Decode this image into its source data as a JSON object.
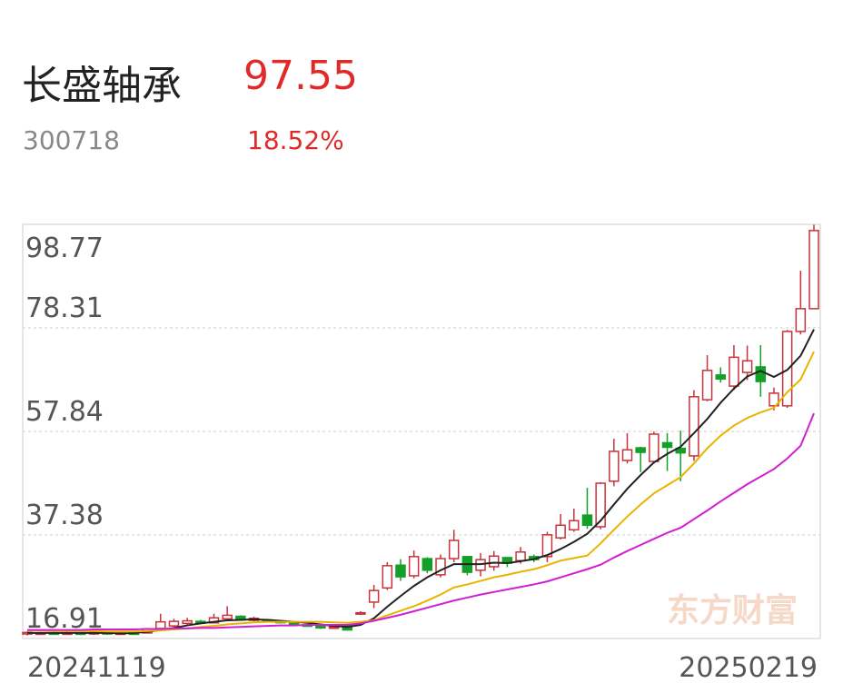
{
  "header": {
    "title": "长盛轴承",
    "price": "97.55",
    "code": "300718",
    "change": "18.52%"
  },
  "chart_data": {
    "type": "candlestick",
    "watermark": "东方财富",
    "categories": [
      "20241119",
      null,
      null,
      null,
      null,
      null,
      null,
      null,
      null,
      null,
      null,
      null,
      null,
      null,
      null,
      null,
      null,
      null,
      null,
      null,
      null,
      null,
      null,
      null,
      null,
      null,
      null,
      null,
      null,
      null,
      null,
      null,
      null,
      null,
      null,
      null,
      null,
      null,
      null,
      null,
      null,
      null,
      null,
      null,
      null,
      null,
      null,
      null,
      null,
      null,
      null,
      null,
      null,
      null,
      null,
      null,
      null,
      null,
      null,
      "20250219"
    ],
    "open": [
      17.8,
      17.9,
      18.0,
      17.9,
      18.0,
      17.8,
      18.1,
      17.8,
      18.0,
      18.0,
      18.9,
      19.4,
      19.9,
      20.3,
      20.0,
      20.8,
      21.3,
      20.5,
      20.6,
      20.3,
      20.0,
      19.6,
      19.3,
      19.0,
      19.4,
      21.8,
      24.1,
      26.9,
      31.4,
      29.3,
      32.7,
      29.5,
      32.7,
      33.1,
      30.4,
      31.1,
      32.9,
      32.3,
      33.1,
      33.1,
      36.8,
      38.4,
      41.3,
      39.0,
      48.0,
      52.1,
      54.6,
      51.9,
      55.6,
      54.5,
      53.0,
      64.1,
      69.0,
      66.8,
      69.5,
      70.6,
      62.9,
      62.9,
      77.6,
      82.1
    ],
    "high": [
      18.3,
      18.2,
      18.2,
      18.3,
      18.1,
      18.3,
      18.2,
      18.2,
      18.1,
      19.0,
      21.8,
      20.8,
      21.0,
      20.6,
      21.8,
      23.3,
      21.5,
      21.2,
      20.8,
      20.5,
      20.2,
      19.8,
      19.5,
      19.4,
      19.8,
      22.3,
      27.5,
      32.0,
      32.6,
      34.3,
      33.0,
      33.5,
      38.4,
      33.2,
      33.8,
      34.2,
      33.0,
      35.0,
      33.5,
      38.0,
      41.5,
      42.6,
      46.7,
      47.8,
      56.4,
      57.5,
      54.8,
      57.8,
      57.5,
      58.0,
      66.0,
      72.9,
      70.5,
      74.9,
      74.8,
      74.9,
      66.5,
      77.9,
      89.6,
      98.7
    ],
    "low": [
      17.5,
      17.6,
      17.7,
      17.7,
      17.6,
      17.6,
      17.6,
      17.6,
      17.7,
      17.9,
      18.8,
      19.2,
      19.7,
      19.8,
      19.9,
      20.6,
      20.4,
      20.3,
      20.1,
      19.9,
      19.4,
      19.2,
      18.8,
      18.8,
      18.5,
      21.6,
      22.9,
      26.5,
      28.3,
      28.8,
      29.8,
      29.0,
      32.0,
      29.4,
      29.2,
      30.3,
      31.0,
      31.7,
      32.0,
      32.0,
      36.5,
      38.0,
      38.6,
      38.5,
      47.0,
      51.5,
      49.8,
      51.5,
      50.0,
      48.0,
      52.0,
      63.8,
      67.5,
      66.0,
      68.0,
      64.7,
      62.0,
      62.5,
      77.0,
      82.0
    ],
    "close": [
      18.1,
      18.0,
      17.9,
      18.0,
      17.8,
      18.1,
      17.8,
      18.0,
      17.9,
      18.8,
      20.2,
      20.3,
      20.4,
      20.0,
      21.0,
      21.5,
      20.6,
      20.9,
      20.3,
      20.1,
      19.6,
      19.4,
      19.0,
      19.2,
      18.6,
      22.0,
      26.4,
      31.3,
      29.1,
      33.1,
      30.4,
      32.7,
      36.3,
      30.0,
      32.5,
      33.2,
      31.8,
      34.0,
      32.5,
      37.4,
      39.3,
      40.2,
      39.3,
      47.6,
      53.9,
      54.2,
      53.7,
      57.3,
      54.7,
      53.6,
      64.7,
      69.9,
      68.2,
      72.5,
      71.8,
      67.7,
      65.4,
      77.6,
      82.1,
      97.55
    ],
    "up_color": "#c8323a",
    "down_color": "#14a028",
    "series": [
      {
        "color": "#222222",
        "values": [
          18.0,
          18.0,
          18.0,
          18.0,
          18.0,
          18.0,
          18.0,
          17.9,
          18.0,
          18.2,
          18.6,
          19.0,
          19.5,
          19.9,
          20.2,
          20.5,
          20.6,
          20.7,
          20.6,
          20.4,
          20.2,
          20.0,
          19.7,
          19.4,
          19.2,
          19.6,
          20.9,
          23.2,
          25.3,
          27.3,
          29.0,
          30.4,
          31.6,
          31.6,
          31.6,
          31.9,
          31.8,
          32.2,
          32.6,
          33.4,
          34.6,
          36.0,
          37.6,
          40.2,
          43.4,
          46.5,
          49.2,
          51.7,
          53.4,
          54.8,
          57.5,
          60.3,
          63.5,
          66.3,
          68.7,
          69.8,
          68.6,
          70.0,
          72.8,
          78.0
        ]
      },
      {
        "color": "#e8b400",
        "values": [
          18.5,
          18.5,
          18.4,
          18.4,
          18.4,
          18.4,
          18.3,
          18.3,
          18.3,
          18.4,
          18.5,
          18.7,
          18.9,
          19.2,
          19.4,
          19.7,
          19.9,
          20.1,
          20.2,
          20.2,
          20.2,
          20.2,
          20.2,
          20.1,
          20.0,
          20.2,
          20.5,
          21.5,
          22.4,
          23.3,
          24.4,
          25.6,
          27.0,
          27.6,
          28.3,
          29.0,
          29.5,
          30.1,
          30.6,
          31.4,
          32.3,
          32.8,
          33.3,
          35.7,
          38.4,
          41.0,
          43.4,
          45.6,
          47.2,
          48.8,
          51.5,
          54.5,
          57.0,
          59.0,
          60.5,
          61.6,
          62.5,
          65.6,
          68.1,
          73.6
        ]
      },
      {
        "color": "#d21ed2",
        "values": [
          18.6,
          18.6,
          18.6,
          18.6,
          18.6,
          18.7,
          18.7,
          18.7,
          18.7,
          18.8,
          18.8,
          18.9,
          18.9,
          19.0,
          19.0,
          19.1,
          19.2,
          19.3,
          19.4,
          19.5,
          19.5,
          19.6,
          19.6,
          19.6,
          19.6,
          19.9,
          20.4,
          21.0,
          21.6,
          22.3,
          23.0,
          23.7,
          24.4,
          25.0,
          25.6,
          26.1,
          26.6,
          27.1,
          27.6,
          28.2,
          29.0,
          29.8,
          30.6,
          31.5,
          32.9,
          34.2,
          35.4,
          36.6,
          37.8,
          38.8,
          40.5,
          42.2,
          44.0,
          45.7,
          47.4,
          48.9,
          50.4,
          52.5,
          55.0,
          61.4
        ]
      }
    ],
    "ylim": [
      16.91,
      98.77
    ],
    "yticks": [
      16.91,
      37.38,
      57.84,
      78.31,
      98.77
    ],
    "grid": true
  }
}
